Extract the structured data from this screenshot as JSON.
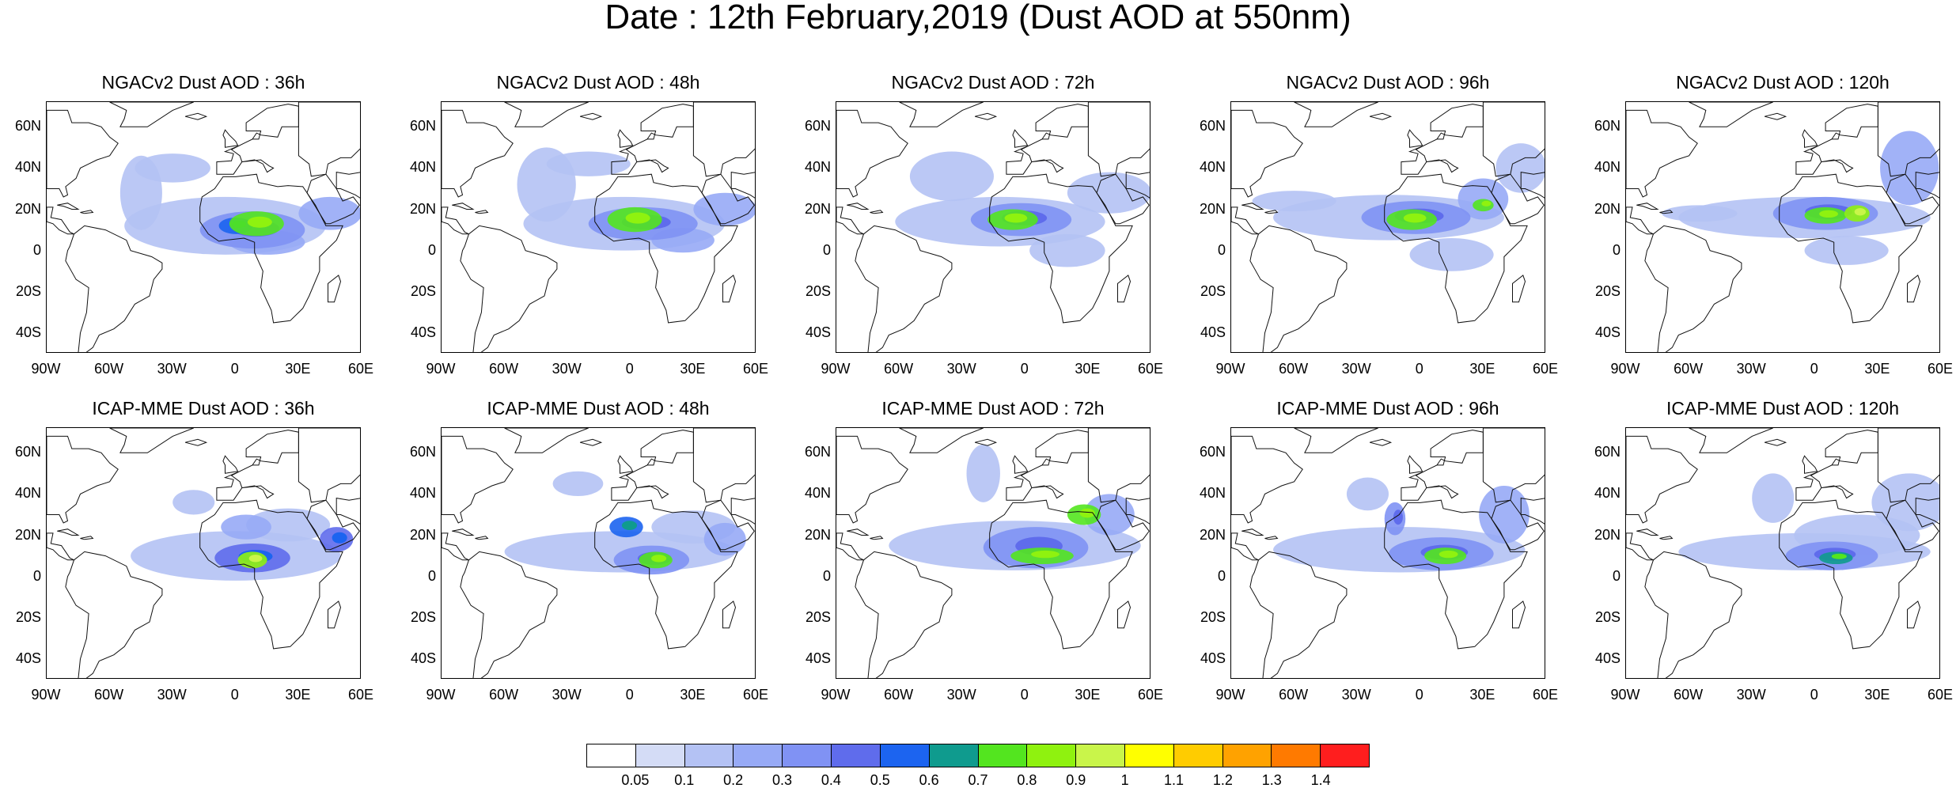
{
  "title": "Date : 12th February,2019 (Dust AOD at 550nm)",
  "rows": [
    {
      "model": "NGACv2",
      "panels": [
        {
          "title": "NGACv2 Dust AOD : 36h"
        },
        {
          "title": "NGACv2 Dust AOD : 48h"
        },
        {
          "title": "NGACv2 Dust AOD : 72h"
        },
        {
          "title": "NGACv2 Dust AOD : 96h"
        },
        {
          "title": "NGACv2 Dust AOD : 120h"
        }
      ]
    },
    {
      "model": "ICAP-MME",
      "panels": [
        {
          "title": "ICAP-MME Dust AOD : 36h"
        },
        {
          "title": "ICAP-MME Dust AOD : 48h"
        },
        {
          "title": "ICAP-MME Dust AOD : 72h"
        },
        {
          "title": "ICAP-MME Dust AOD : 96h"
        },
        {
          "title": "ICAP-MME Dust AOD : 120h"
        }
      ]
    }
  ],
  "lon_ticks": [
    "90W",
    "60W",
    "30W",
    "0",
    "30E",
    "60E"
  ],
  "lat_ticks": [
    "60N",
    "40N",
    "20N",
    "0",
    "20S",
    "40S"
  ],
  "map_extent": {
    "lon": [
      -90,
      60
    ],
    "lat": [
      -50,
      72
    ]
  },
  "colorbar": {
    "labels": [
      "0.05",
      "0.1",
      "0.2",
      "0.3",
      "0.4",
      "0.5",
      "0.6",
      "0.7",
      "0.8",
      "0.9",
      "1",
      "1.1",
      "1.2",
      "1.3",
      "1.4"
    ],
    "colors": [
      "#ffffff",
      "#d4dcf6",
      "#b4c2f4",
      "#97aaf6",
      "#8092f4",
      "#5f6cec",
      "#1c64f0",
      "#0f9b8e",
      "#53e51f",
      "#8ff20f",
      "#c9f54a",
      "#ffff00",
      "#ffcc00",
      "#ffa200",
      "#ff7a00",
      "#ff1e1e"
    ]
  }
}
